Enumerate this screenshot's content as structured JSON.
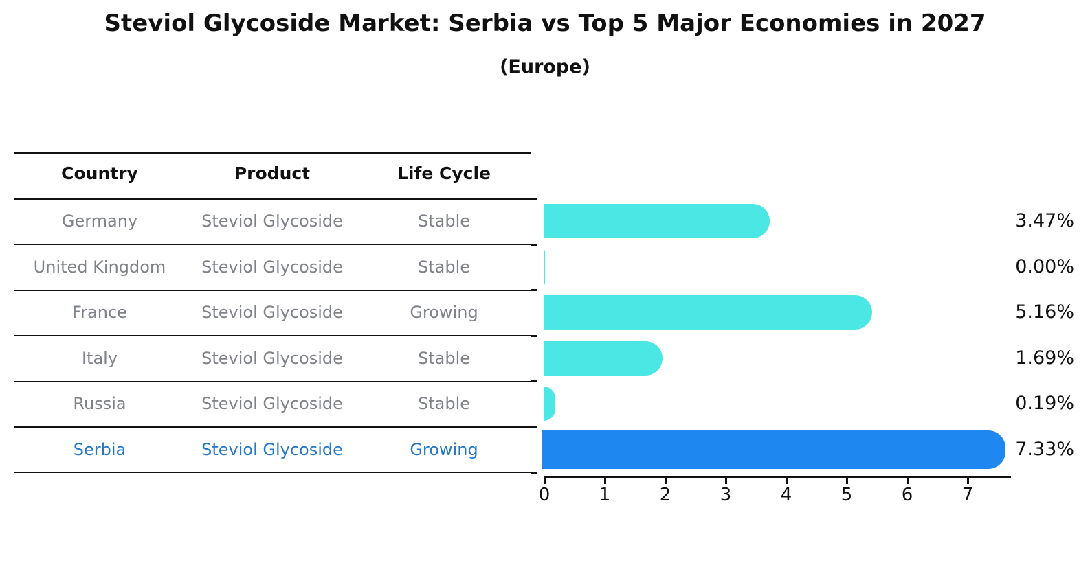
{
  "title": "Steviol Glycoside Market: Serbia vs Top 5 Major Economies in 2027",
  "subtitle": "(Europe)",
  "table": {
    "headers": [
      "Country",
      "Product",
      "Life Cycle"
    ],
    "rows": [
      {
        "country": "Germany",
        "product": "Steviol Glycoside",
        "life_cycle": "Stable",
        "highlight": false
      },
      {
        "country": "United Kingdom",
        "product": "Steviol Glycoside",
        "life_cycle": "Stable",
        "highlight": false
      },
      {
        "country": "France",
        "product": "Steviol Glycoside",
        "life_cycle": "Growing",
        "highlight": false
      },
      {
        "country": "Italy",
        "product": "Steviol Glycoside",
        "life_cycle": "Stable",
        "highlight": false
      },
      {
        "country": "Russia",
        "product": "Steviol Glycoside",
        "life_cycle": "Stable",
        "highlight": false
      },
      {
        "country": "Serbia",
        "product": "Steviol Glycoside",
        "life_cycle": "Growing",
        "highlight": true
      }
    ]
  },
  "chart_data": {
    "type": "bar",
    "orientation": "horizontal",
    "categories": [
      "Germany",
      "United Kingdom",
      "France",
      "Italy",
      "Russia",
      "Serbia"
    ],
    "values": [
      3.47,
      0.0,
      5.16,
      1.69,
      0.19,
      7.33
    ],
    "value_labels": [
      "3.47%",
      "0.00%",
      "5.16%",
      "1.69%",
      "0.19%",
      "7.33%"
    ],
    "x_ticks": [
      0,
      1,
      2,
      3,
      4,
      5,
      6,
      7
    ],
    "xlim": [
      0,
      7.7
    ],
    "grid": false,
    "legend": "none",
    "bar_color": "#4ae7e5",
    "highlight_color": "#1e88f0",
    "highlight_index": 5,
    "highlight_edge_style": "dashed",
    "highlight_text_color": "#2478c9",
    "table_text_color": "#7f8289",
    "axis_color": "#111111"
  }
}
